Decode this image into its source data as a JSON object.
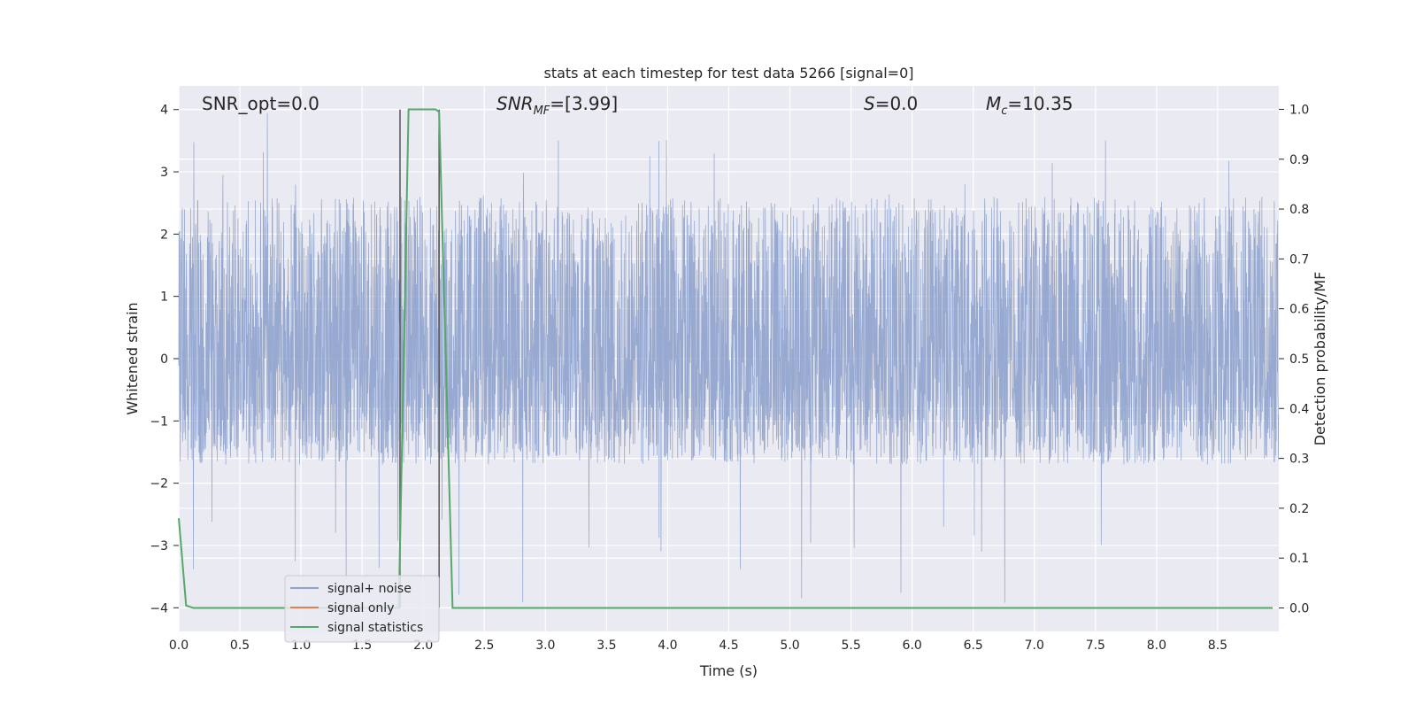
{
  "chart_data": {
    "type": "line",
    "title": "stats at each timestep for test data 5266 [signal=0]",
    "xlabel": "Time (s)",
    "ylabel_left": "Whitened strain",
    "ylabel_right": "Detection probability/MF",
    "xlim": [
      0.0,
      9.0
    ],
    "ylim_left": [
      -4.38,
      4.38
    ],
    "ylim_right": [
      -0.047,
      1.047
    ],
    "x_ticks": [
      "0.0",
      "0.5",
      "1.0",
      "1.5",
      "2.0",
      "2.5",
      "3.0",
      "3.5",
      "4.0",
      "4.5",
      "5.0",
      "5.5",
      "6.0",
      "6.5",
      "7.0",
      "7.5",
      "8.0",
      "8.5"
    ],
    "y_ticks_left": [
      "4",
      "3",
      "2",
      "1",
      "0",
      "−1",
      "−2",
      "−3",
      "−4"
    ],
    "y_ticks_right": [
      "1.0",
      "0.9",
      "0.8",
      "0.7",
      "0.6",
      "0.5",
      "0.4",
      "0.3",
      "0.2",
      "0.1",
      "0.0"
    ],
    "grid": true,
    "legend_position": "lower-left",
    "annotations": {
      "snr_opt": "SNR_opt=0.0",
      "snr_mf_main": "SNR",
      "snr_mf_sub": "MF",
      "snr_mf_value": "=[3.99]",
      "s_symbol": "S",
      "s_value": "=0.0",
      "mc_main": "M",
      "mc_sub": "c",
      "mc_value": "=10.35"
    },
    "vertical_lines": [
      1.81,
      2.13
    ],
    "series": [
      {
        "name": "signal+ noise",
        "color": "#8ea2cc",
        "kind": "noise",
        "duration": 9.0,
        "sample_rate_hz": 2048,
        "envelope": [
          -1.7,
          2.6
        ],
        "peak_min": -3.95,
        "peak_max": 4.0
      },
      {
        "name": "signal only",
        "color": "#dd8452",
        "x": [],
        "y": []
      },
      {
        "name": "signal statistics",
        "color": "#55a868",
        "axis": "right",
        "x": [
          0.0,
          0.06,
          0.12,
          1.8,
          1.88,
          2.1,
          2.13,
          2.24,
          8.95
        ],
        "y": [
          0.18,
          0.005,
          0.0,
          0.0,
          1.0,
          1.0,
          0.995,
          0.0,
          0.0
        ]
      }
    ]
  }
}
